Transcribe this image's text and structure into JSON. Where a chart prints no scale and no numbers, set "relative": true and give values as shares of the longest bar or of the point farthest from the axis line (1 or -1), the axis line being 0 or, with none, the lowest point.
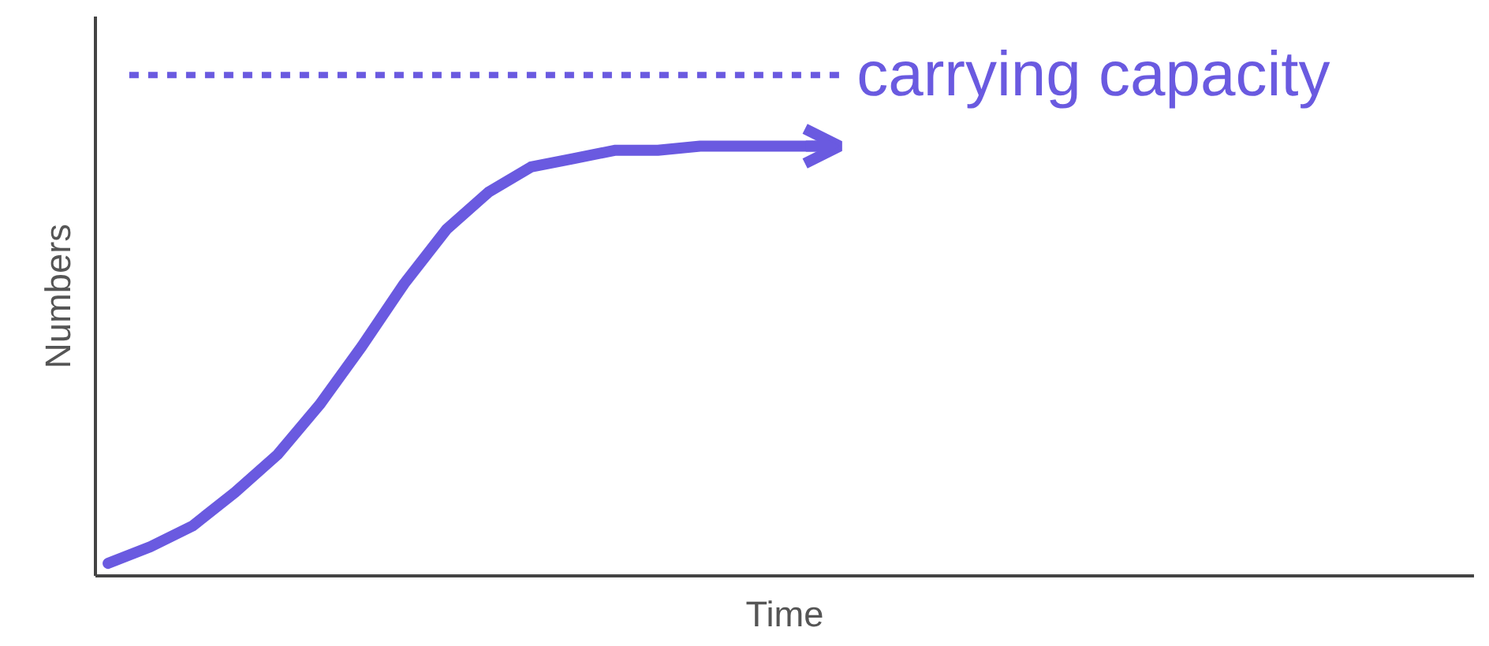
{
  "chart_data": {
    "type": "line",
    "relative": true,
    "xlabel": "Time",
    "ylabel": "Numbers",
    "tick_labels": false,
    "grid": false,
    "marker": "none",
    "line_style": "solid",
    "categories": [
      null,
      null,
      null,
      null,
      null,
      null,
      null,
      null,
      null,
      null,
      null,
      null,
      null,
      null,
      null,
      null,
      null,
      null
    ],
    "series": [
      {
        "color": "#6a5ae0",
        "values": [
          0,
          0.04,
          0.09,
          0.17,
          0.26,
          0.38,
          0.52,
          0.67,
          0.8,
          0.89,
          0.95,
          0.97,
          0.99,
          0.99,
          1.0,
          1.0,
          1.0,
          1.0
        ]
      }
    ],
    "ref_lines": [
      {
        "axis": "y",
        "value": 1.17,
        "label": "carrying capacity",
        "color": "#6a5ae0",
        "line_style": "dashed"
      }
    ]
  }
}
